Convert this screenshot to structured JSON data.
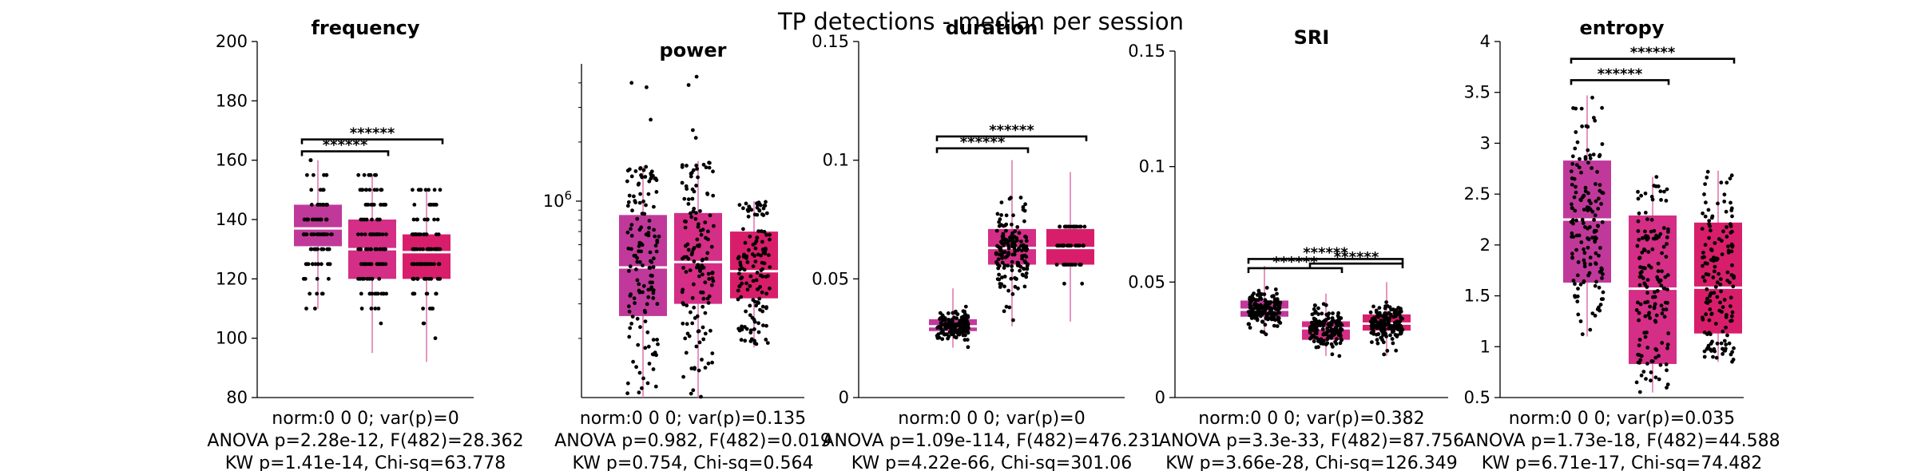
{
  "figure": {
    "title": "TP detections - median per session"
  },
  "colors": {
    "group1": "#c0399a",
    "group2": "#d42e86",
    "group3": "#d81e6a",
    "whisker": "#e070b0",
    "median": "#ffffff",
    "points": "#000000"
  },
  "chart_data": [
    {
      "type": "box",
      "title": "frequency",
      "ylim": [
        80,
        200
      ],
      "yticks": [
        80,
        100,
        120,
        140,
        160,
        180,
        200
      ],
      "ytick_labels": [
        "80",
        "100",
        "120",
        "140",
        "160",
        "180",
        "200"
      ],
      "groups": [
        {
          "q1": 131,
          "median": 137,
          "q3": 145,
          "whisker_low": 110,
          "whisker_high": 160,
          "n": 100,
          "spread": 12,
          "discrete": 5
        },
        {
          "q1": 120,
          "median": 130,
          "q3": 140,
          "whisker_low": 95,
          "whisker_high": 155,
          "n": 110,
          "spread": 14,
          "discrete": 5
        },
        {
          "q1": 120,
          "median": 129,
          "q3": 135,
          "whisker_low": 92,
          "whisker_high": 150,
          "n": 110,
          "spread": 12,
          "discrete": 5
        }
      ],
      "significance": [
        {
          "from": 1,
          "to": 2,
          "label": "******",
          "y": 163
        },
        {
          "from": 1,
          "to": 3,
          "label": "******",
          "y": 167
        }
      ],
      "stats": [
        "norm:0  0  0; var(p)=0",
        "ANOVA p=2.28e-12, F(482)=28.362",
        "KW p=1.41e-14, Chi-sq=63.778"
      ]
    },
    {
      "type": "box",
      "title": "power",
      "yscale": "log",
      "ylim": [
        100000,
        5000000
      ],
      "yticks": [
        1000000
      ],
      "ytick_labels": [
        "10^6"
      ],
      "groups": [
        {
          "q1": 260000,
          "median": 460000,
          "q3": 850000,
          "whisker_low": 100000,
          "whisker_high": 1500000,
          "n": 140,
          "spread": 0.35,
          "outliers": [
            4000000,
            3800000,
            2600000
          ]
        },
        {
          "q1": 300000,
          "median": 490000,
          "q3": 870000,
          "whisker_low": 100000,
          "whisker_high": 1600000,
          "n": 140,
          "spread": 0.35,
          "outliers": [
            4300000,
            3900000,
            2300000,
            2100000
          ]
        },
        {
          "q1": 320000,
          "median": 440000,
          "q3": 700000,
          "whisker_low": 180000,
          "whisker_high": 1000000,
          "n": 140,
          "spread": 0.25
        }
      ],
      "significance": [],
      "stats": [
        "norm:0  0  0; var(p)=0.135",
        "ANOVA p=0.982, F(482)=0.019",
        "KW p=0.754, Chi-sq=0.564"
      ]
    },
    {
      "type": "box",
      "title": "duration",
      "ylim": [
        0,
        0.15
      ],
      "yticks": [
        0,
        0.05,
        0.1,
        0.15
      ],
      "ytick_labels": [
        "0",
        "0.05",
        "0.1",
        "0.15"
      ],
      "groups": [
        {
          "q1": 0.028,
          "median": 0.03,
          "q3": 0.033,
          "whisker_low": 0.021,
          "whisker_high": 0.046,
          "n": 150,
          "spread": 0.003
        },
        {
          "q1": 0.056,
          "median": 0.063,
          "q3": 0.071,
          "whisker_low": 0.03,
          "whisker_high": 0.1,
          "n": 150,
          "spread": 0.009
        },
        {
          "q1": 0.056,
          "median": 0.063,
          "q3": 0.071,
          "whisker_low": 0.032,
          "whisker_high": 0.095,
          "n": 60,
          "spread": 0.007,
          "discrete": 0.008
        }
      ],
      "significance": [
        {
          "from": 1,
          "to": 2,
          "label": "******",
          "y": 0.105
        },
        {
          "from": 1,
          "to": 3,
          "label": "******",
          "y": 0.11
        }
      ],
      "stats": [
        "norm:0  0  0; var(p)=0",
        "ANOVA p=1.09e-114, F(482)=476.231",
        "KW p=4.22e-66, Chi-sq=301.06"
      ]
    },
    {
      "type": "box",
      "title": "SRI",
      "ylim": [
        0,
        0.15
      ],
      "yticks": [
        0,
        0.05,
        0.1,
        0.15
      ],
      "ytick_labels": [
        "0",
        "0.05",
        "0.1",
        "0.15"
      ],
      "groups": [
        {
          "q1": 0.035,
          "median": 0.038,
          "q3": 0.042,
          "whisker_low": 0.027,
          "whisker_high": 0.057,
          "n": 150,
          "spread": 0.004
        },
        {
          "q1": 0.025,
          "median": 0.03,
          "q3": 0.033,
          "whisker_low": 0.018,
          "whisker_high": 0.045,
          "n": 150,
          "spread": 0.004
        },
        {
          "q1": 0.029,
          "median": 0.032,
          "q3": 0.036,
          "whisker_low": 0.018,
          "whisker_high": 0.05,
          "n": 150,
          "spread": 0.004
        }
      ],
      "significance": [
        {
          "from": 1,
          "to": 2,
          "label": "******",
          "y": 0.056
        },
        {
          "from": 2,
          "to": 3,
          "label": "******",
          "y": 0.058
        },
        {
          "from": 1,
          "to": 3,
          "label": "******",
          "y": 0.06
        }
      ],
      "stats": [
        "norm:0  0  0; var(p)=0.382",
        "ANOVA p=3.3e-33, F(482)=87.756",
        "KW p=3.66e-28, Chi-sq=126.349"
      ]
    },
    {
      "type": "box",
      "title": "entropy",
      "ylim": [
        0.5,
        4
      ],
      "yticks": [
        0.5,
        1,
        1.5,
        2,
        2.5,
        3,
        3.5,
        4
      ],
      "ytick_labels": [
        "0.5",
        "1",
        "1.5",
        "2",
        "2.5",
        "3",
        "3.5",
        "4"
      ],
      "groups": [
        {
          "q1": 1.63,
          "median": 2.25,
          "q3": 2.83,
          "whisker_low": 1.1,
          "whisker_high": 3.47,
          "n": 150,
          "spread": 0.55
        },
        {
          "q1": 0.83,
          "median": 1.57,
          "q3": 2.29,
          "whisker_low": 0.55,
          "whisker_high": 2.67,
          "n": 150,
          "spread": 0.6
        },
        {
          "q1": 1.13,
          "median": 1.58,
          "q3": 2.22,
          "whisker_low": 0.85,
          "whisker_high": 2.73,
          "n": 150,
          "spread": 0.55
        }
      ],
      "significance": [
        {
          "from": 1,
          "to": 2,
          "label": "******",
          "y": 3.62
        },
        {
          "from": 1,
          "to": 3,
          "label": "******",
          "y": 3.83
        }
      ],
      "stats": [
        "norm:0  0  0; var(p)=0.035",
        "ANOVA p=1.73e-18, F(482)=44.588",
        "KW p=6.71e-17, Chi-sq=74.482"
      ]
    }
  ]
}
